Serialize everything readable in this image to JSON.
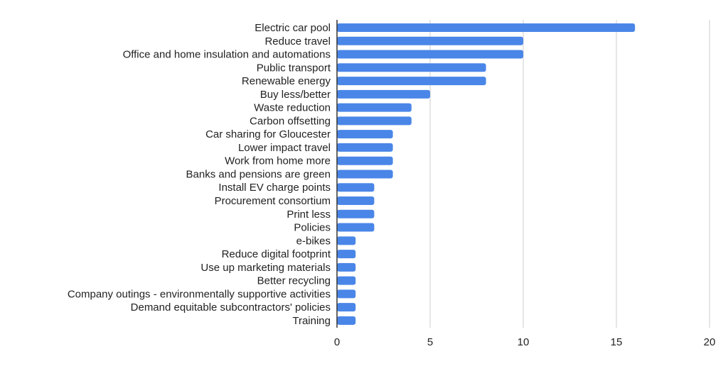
{
  "chart_data": {
    "type": "bar",
    "orientation": "horizontal",
    "title": "",
    "xlabel": "",
    "ylabel": "",
    "categories": [
      "Electric car pool",
      "Reduce travel",
      "Office and home insulation and automations",
      "Public transport",
      "Renewable energy",
      "Buy less/better",
      "Waste reduction",
      "Carbon offsetting",
      "Car sharing for Gloucester",
      "Lower impact travel",
      "Work from home more",
      "Banks and pensions are green",
      "Install EV charge points",
      "Procurement consortium",
      "Print less",
      "Policies",
      "e-bikes",
      "Reduce digital footprint",
      "Use up marketing materials",
      "Better recycling",
      "Company outings - environmentally supportive activities",
      "Demand equitable subcontractors' policies",
      "Training"
    ],
    "values": [
      16,
      10,
      10,
      8,
      8,
      5,
      4,
      4,
      3,
      3,
      3,
      3,
      2,
      2,
      2,
      2,
      1,
      1,
      1,
      1,
      1,
      1,
      1
    ],
    "xlim": [
      0,
      20
    ],
    "x_ticks": [
      "0",
      "5",
      "10",
      "15",
      "20"
    ],
    "x_tick_values": [
      0,
      5,
      10,
      15,
      20
    ],
    "grid": true,
    "legend": "none",
    "bar_color": "#4a86e8"
  }
}
